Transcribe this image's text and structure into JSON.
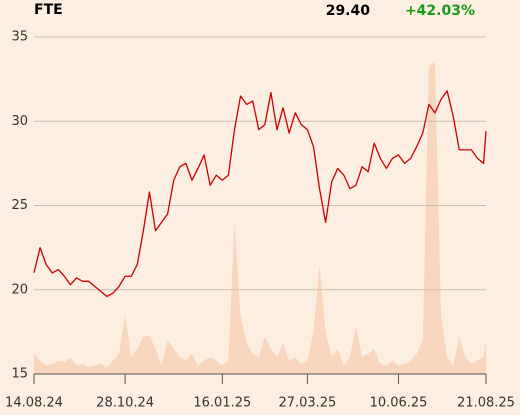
{
  "chart_data": {
    "type": "line",
    "title": "FTE",
    "last": "29.40",
    "change": "+42.03%",
    "change_color": "#1a9a1a",
    "x": [
      "2024-08-14",
      "2024-08-19",
      "2024-08-24",
      "2024-08-29",
      "2024-09-03",
      "2024-09-08",
      "2024-09-13",
      "2024-09-18",
      "2024-09-23",
      "2024-09-28",
      "2024-10-03",
      "2024-10-08",
      "2024-10-13",
      "2024-10-18",
      "2024-10-23",
      "2024-10-28",
      "2024-11-02",
      "2024-11-07",
      "2024-11-12",
      "2024-11-17",
      "2024-11-22",
      "2024-11-27",
      "2024-12-02",
      "2024-12-07",
      "2024-12-12",
      "2024-12-17",
      "2024-12-22",
      "2024-12-27",
      "2025-01-01",
      "2025-01-06",
      "2025-01-11",
      "2025-01-16",
      "2025-01-21",
      "2025-01-26",
      "2025-01-31",
      "2025-02-05",
      "2025-02-10",
      "2025-02-15",
      "2025-02-20",
      "2025-02-25",
      "2025-03-02",
      "2025-03-07",
      "2025-03-12",
      "2025-03-17",
      "2025-03-22",
      "2025-03-27",
      "2025-04-01",
      "2025-04-06",
      "2025-04-11",
      "2025-04-16",
      "2025-04-21",
      "2025-04-26",
      "2025-05-01",
      "2025-05-06",
      "2025-05-11",
      "2025-05-16",
      "2025-05-21",
      "2025-05-26",
      "2025-05-31",
      "2025-06-05",
      "2025-06-10",
      "2025-06-15",
      "2025-06-20",
      "2025-06-25",
      "2025-06-30",
      "2025-07-05",
      "2025-07-10",
      "2025-07-15",
      "2025-07-20",
      "2025-07-25",
      "2025-07-30",
      "2025-08-04",
      "2025-08-09",
      "2025-08-14",
      "2025-08-19",
      "2025-08-21"
    ],
    "series": [
      {
        "name": "price",
        "color": "#cc0000",
        "values": [
          21,
          22.5,
          21.5,
          21,
          21.2,
          20.8,
          20.3,
          20.7,
          20.5,
          20.5,
          20.2,
          19.9,
          19.6,
          19.8,
          20.2,
          20.8,
          20.8,
          21.5,
          23.5,
          25.8,
          23.5,
          24,
          24.5,
          26.5,
          27.3,
          27.5,
          26.5,
          27.2,
          28,
          26.2,
          26.8,
          26.5,
          26.8,
          29.5,
          31.5,
          31,
          31.2,
          29.5,
          29.8,
          31.7,
          29.5,
          30.8,
          29.3,
          30.5,
          29.8,
          29.5,
          28.5,
          26,
          24,
          26.4,
          27.2,
          26.8,
          26,
          26.2,
          27.3,
          27,
          28.7,
          27.8,
          27.2,
          27.8,
          28,
          27.5,
          27.8,
          28.5,
          29.3,
          31,
          30.5,
          31.3,
          31.8,
          30.3,
          28.3,
          28.3,
          28.3,
          27.8,
          27.5,
          29.4
        ]
      },
      {
        "name": "volume",
        "type": "area",
        "axis": "y2",
        "color": "#f7d6bd",
        "values": [
          1.2,
          0.8,
          0.5,
          0.6,
          0.8,
          0.7,
          1,
          0.5,
          0.6,
          0.4,
          0.5,
          0.6,
          0.4,
          0.8,
          1.2,
          3.5,
          1,
          1.5,
          2.2,
          2.3,
          1.5,
          0.5,
          2,
          1.5,
          1,
          0.8,
          1.2,
          0.5,
          0.8,
          1,
          0.8,
          0.5,
          0.8,
          9,
          3.5,
          1.8,
          1.2,
          1,
          2.2,
          1.5,
          1,
          1.8,
          0.8,
          1,
          0.6,
          0.8,
          2.5,
          6.5,
          2.5,
          1,
          1.5,
          0.5,
          1,
          2.8,
          1,
          1.2,
          1.5,
          0.6,
          0.5,
          0.8,
          0.5,
          0.6,
          0.8,
          1.2,
          2,
          18.3,
          18.5,
          3.5,
          1,
          0.5,
          2.2,
          1,
          0.6,
          0.8,
          1,
          2
        ]
      }
    ],
    "xlim": [
      "2024-08-14",
      "2025-08-21"
    ],
    "xticks": [
      {
        "value": "2024-08-14",
        "label": "14.08.24"
      },
      {
        "value": "2024-10-28",
        "label": "28.10.24"
      },
      {
        "value": "2025-01-16",
        "label": "16.01.25"
      },
      {
        "value": "2025-03-27",
        "label": "27.03.25"
      },
      {
        "value": "2025-06-10",
        "label": "10.06.25"
      },
      {
        "value": "2025-08-21",
        "label": "21.08.25"
      }
    ],
    "ylim": [
      15,
      35
    ],
    "yticks": [
      15,
      20,
      25,
      30,
      35
    ],
    "y2lim": [
      0,
      20
    ],
    "grid": true
  }
}
